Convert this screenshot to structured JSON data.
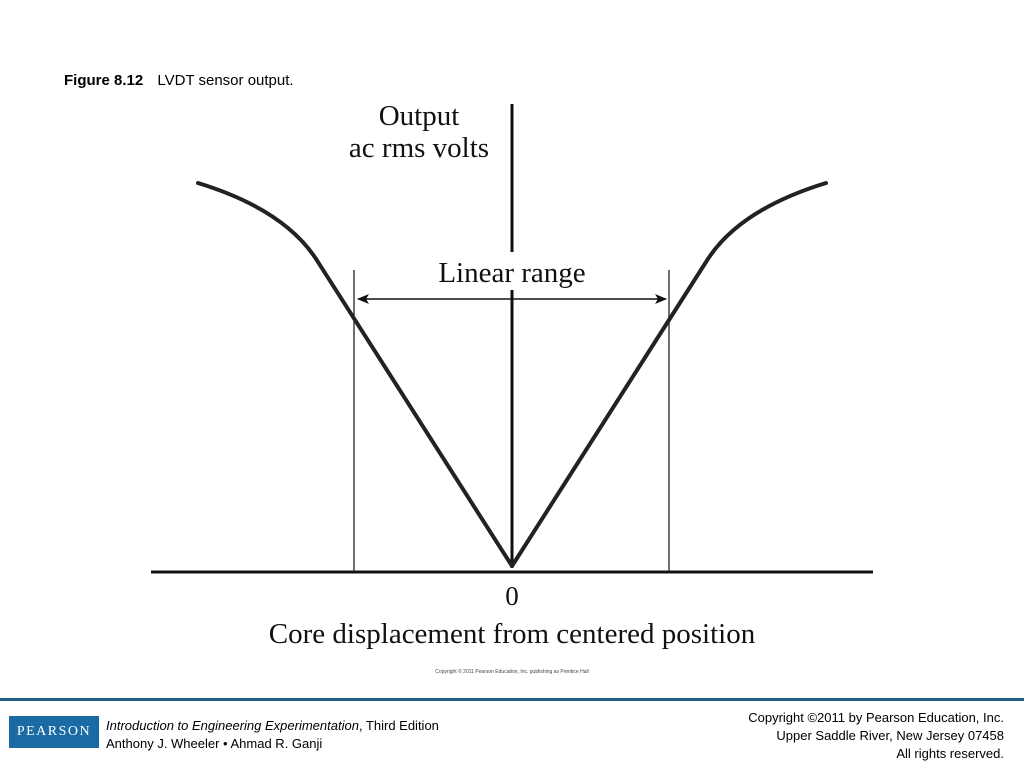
{
  "figure": {
    "number": "Figure 8.12",
    "caption": "LVDT sensor output."
  },
  "diagram": {
    "y_axis_label_line1": "Output",
    "y_axis_label_line2": "ac rms volts",
    "range_label": "Linear range",
    "origin_label": "0",
    "x_axis_label": "Core displacement from centered position",
    "image_copyright": "Copyright © 2011 Pearson Education, Inc. publishing as Prentice Hall"
  },
  "footer": {
    "logo_text": "PEARSON",
    "book_title": "Introduction to Engineering Experimentation",
    "book_edition": ", Third Edition",
    "authors": "Anthony J. Wheeler • Ahmad R. Ganji",
    "copyright_line1": "Copyright ©2011 by Pearson Education, Inc.",
    "copyright_line2": "Upper Saddle River, New Jersey 07458",
    "copyright_line3": "All rights reserved."
  },
  "colors": {
    "footer_rule": "#1f5f86",
    "logo_background": "#1a6aa3"
  }
}
